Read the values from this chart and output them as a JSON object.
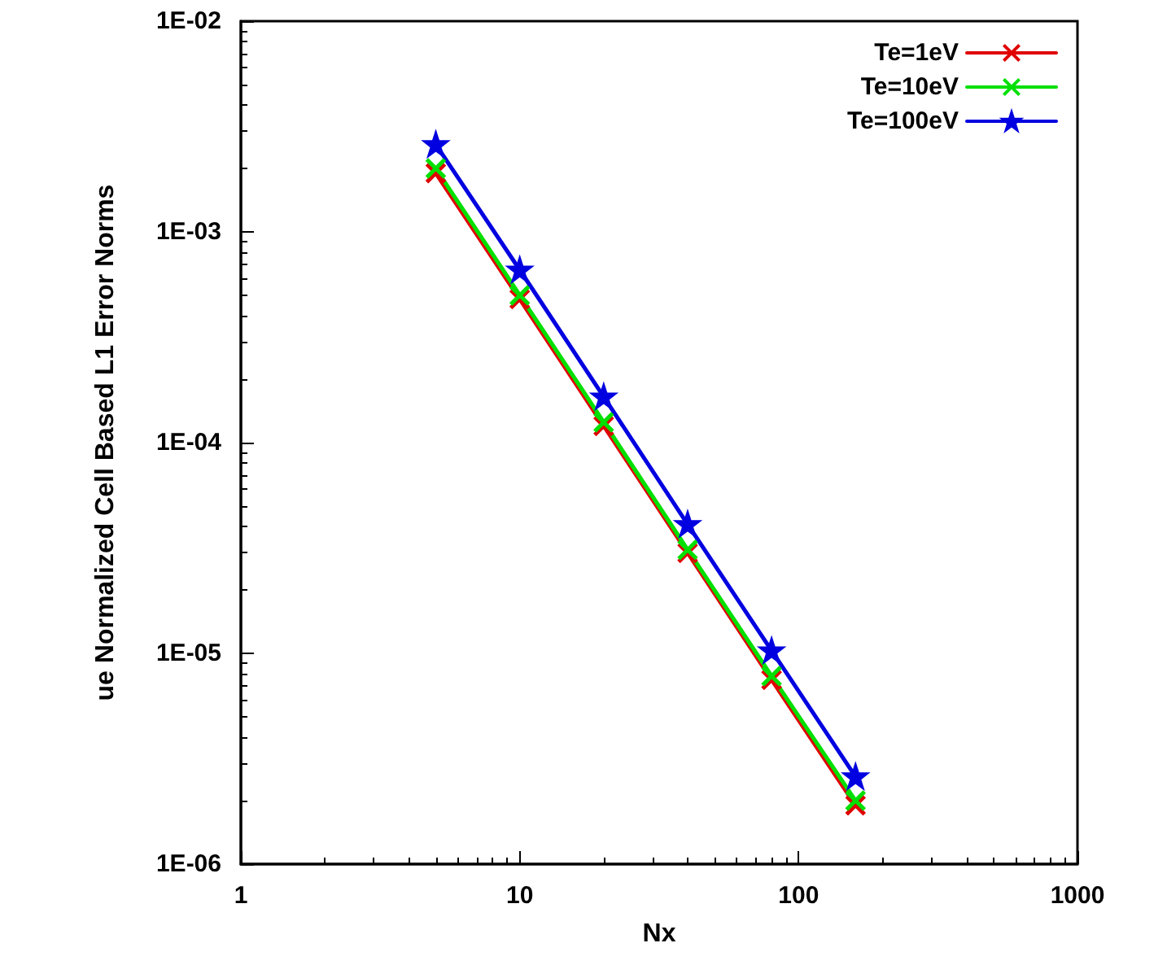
{
  "chart_data": {
    "type": "line",
    "xlabel": "Nx",
    "ylabel": "ue Normalized Cell Based L1 Error Norms",
    "x": [
      5,
      10,
      20,
      40,
      80,
      160
    ],
    "series": [
      {
        "name": "Te=1eV",
        "color": "#e00000",
        "marker": "cross",
        "values": [
          0.0019,
          0.00048,
          0.00012,
          3e-05,
          7.5e-06,
          1.9e-06
        ]
      },
      {
        "name": "Te=10eV",
        "color": "#00e000",
        "marker": "cross",
        "values": [
          0.002,
          0.0005,
          0.000125,
          3.1e-05,
          7.8e-06,
          2e-06
        ]
      },
      {
        "name": "Te=100eV",
        "color": "#0000e0",
        "marker": "star",
        "values": [
          0.0026,
          0.00066,
          0.000165,
          4.1e-05,
          1.03e-05,
          2.6e-06
        ]
      }
    ],
    "log": "xy",
    "xlim": [
      1,
      1000
    ],
    "xticks": [
      1,
      10,
      100,
      1000
    ],
    "ylim": [
      1e-06,
      0.01
    ],
    "yticks": [
      {
        "value": 1e-06,
        "label": "1E-06"
      },
      {
        "value": 1e-05,
        "label": "1E-05"
      },
      {
        "value": 0.0001,
        "label": "1E-04"
      },
      {
        "value": 0.001,
        "label": "1E-03"
      },
      {
        "value": 0.01,
        "label": "1E-02"
      }
    ],
    "grid": false,
    "legend": "top right",
    "line_style": "solid"
  }
}
